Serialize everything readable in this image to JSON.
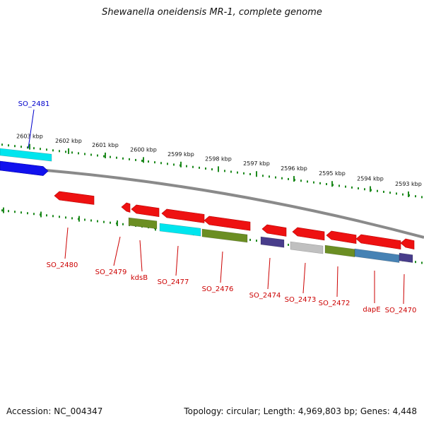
{
  "title": "Shewanella oneidensis MR-1, complete genome",
  "footer": {
    "accession_label": "Accession:",
    "accession": "NC_004347",
    "topology_label": "Topology:",
    "topology": "circular",
    "length_label": "Length:",
    "length": "4,969,803 bp",
    "genes_label": "Genes:",
    "genes": "4,448"
  },
  "colors": {
    "backbone": "#8a8a8a",
    "tick": "#1e8a1e",
    "forward_label": "#0000cc",
    "reverse_label": "#cc0000",
    "red": "#ee1111",
    "olive": "#6b8e23",
    "cyan": "#00e5ee",
    "blue": "#1111ee",
    "slate": "#483d8b",
    "silver": "#c0c0c0",
    "steel": "#4682b4"
  },
  "coordinate_labels": [
    "2603 kbp",
    "2602 kbp",
    "2601 kbp",
    "2600 kbp",
    "2599 kbp",
    "2598 kbp",
    "2597 kbp",
    "2596 kbp",
    "2595 kbp",
    "2594 kbp",
    "2593 kbp"
  ],
  "forward_genes": [
    {
      "label": "SO_2481",
      "color": "blue",
      "icon": "forward-arrow"
    }
  ],
  "forward_cds": [
    {
      "color": "cyan"
    }
  ],
  "reverse_genes": [
    {
      "label": "SO_2480",
      "color": "red"
    },
    {
      "label": "SO_2479",
      "color": "red"
    },
    {
      "label": "kdsB",
      "color": "red"
    },
    {
      "label": "SO_2477",
      "color": "red"
    },
    {
      "label": "SO_2476",
      "color": "red"
    },
    {
      "label": "SO_2474",
      "color": "red"
    },
    {
      "label": "SO_2473",
      "color": "red"
    },
    {
      "label": "SO_2472",
      "color": "red"
    },
    {
      "label": "dapE",
      "color": "red"
    },
    {
      "label": "SO_2470",
      "color": "red"
    }
  ],
  "reverse_cds": [
    {
      "color": "olive"
    },
    {
      "color": "cyan"
    },
    {
      "color": "olive"
    },
    {
      "color": "slate"
    },
    {
      "color": "silver"
    },
    {
      "color": "olive"
    },
    {
      "color": "steel"
    },
    {
      "color": "slate"
    }
  ]
}
